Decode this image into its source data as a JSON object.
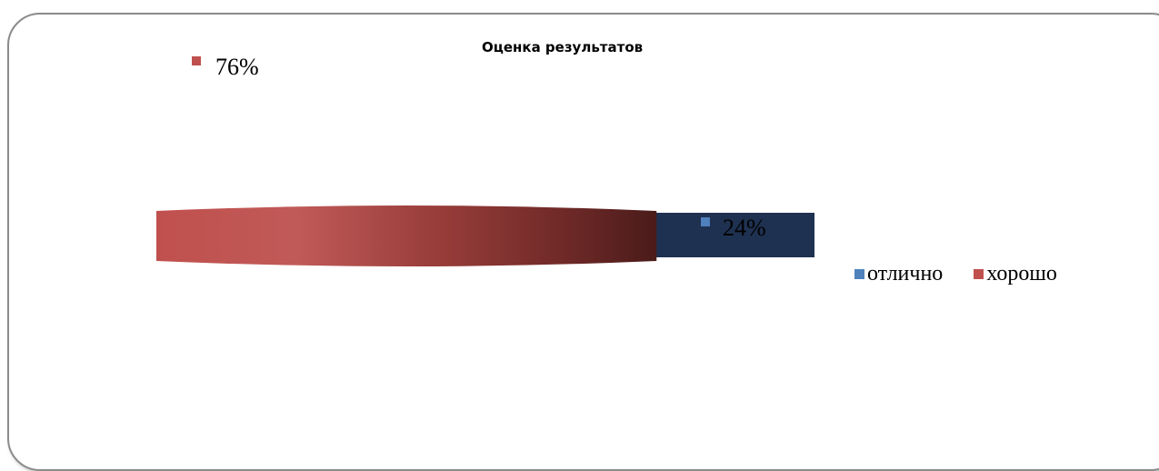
{
  "chart_data": {
    "type": "pie",
    "title": "Оценка результатов",
    "categories": [
      "отлично",
      "хорошо"
    ],
    "values": [
      24,
      76
    ],
    "data_labels": [
      "24%",
      "76%"
    ],
    "legend_position": "right",
    "colors": [
      "#4f81bd",
      "#c0504d"
    ],
    "series": [
      {
        "name": "отлично",
        "value": 24,
        "label": "24%",
        "color": "#4f81bd"
      },
      {
        "name": "хорошо",
        "value": 76,
        "label": "76%",
        "color": "#c0504d"
      }
    ]
  },
  "legend": {
    "items": [
      {
        "label": "отлично",
        "color": "#4f81bd"
      },
      {
        "label": "хорошо",
        "color": "#c0504d"
      }
    ]
  }
}
